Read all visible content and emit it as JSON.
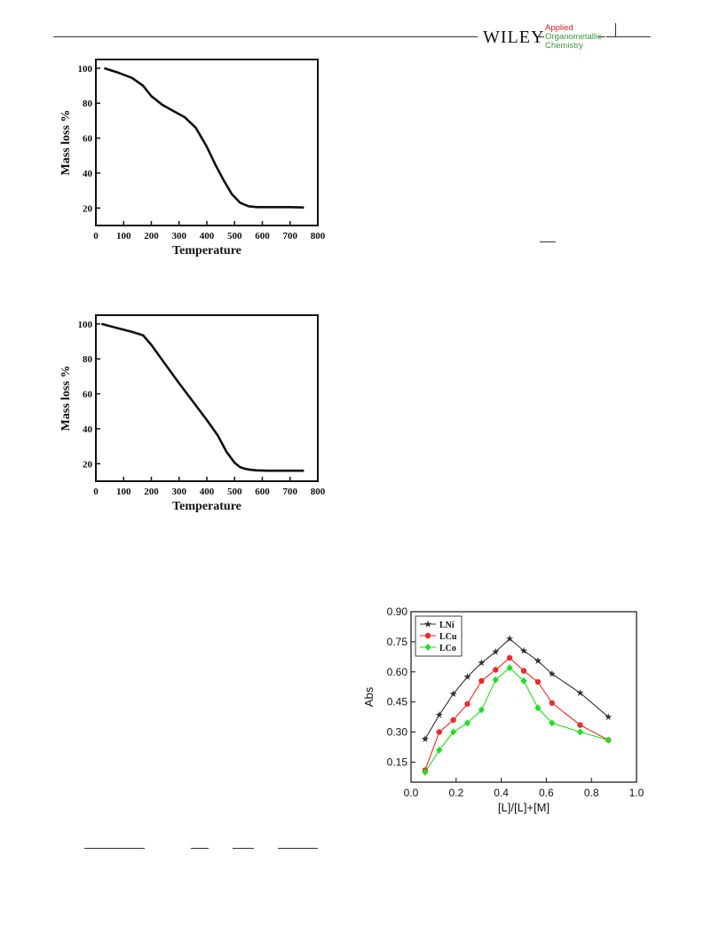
{
  "header": {
    "publisher": "WILEY",
    "journal_lines": [
      "Applied",
      "Organometallic",
      "Chemistry"
    ],
    "journal_accent": "#d02020",
    "journal_color": "#3a9a3a"
  },
  "chart_data": [
    {
      "type": "line",
      "title": "",
      "xlabel": "Temperature",
      "ylabel": "Mass loss %",
      "xlim": [
        0,
        800
      ],
      "ylim": [
        10,
        105
      ],
      "x_ticks": [
        0,
        100,
        200,
        300,
        400,
        500,
        600,
        700,
        800
      ],
      "y_ticks": [
        20,
        40,
        60,
        80,
        100
      ],
      "grid": false,
      "series": [
        {
          "x": [
            30,
            80,
            130,
            170,
            200,
            240,
            280,
            320,
            360,
            400,
            430,
            460,
            490,
            520,
            550,
            580,
            620,
            700,
            750
          ],
          "y": [
            100,
            97.5,
            94.5,
            90,
            84,
            79,
            75.5,
            72,
            66,
            55,
            45,
            36,
            28,
            23,
            21,
            20.5,
            20.5,
            20.5,
            20.3
          ]
        }
      ]
    },
    {
      "type": "line",
      "title": "",
      "xlabel": "Temperature",
      "ylabel": "Mass loss %",
      "xlim": [
        0,
        800
      ],
      "ylim": [
        10,
        105
      ],
      "x_ticks": [
        0,
        100,
        200,
        300,
        400,
        500,
        600,
        700,
        800
      ],
      "y_ticks": [
        20,
        40,
        60,
        80,
        100
      ],
      "grid": false,
      "series": [
        {
          "x": [
            20,
            80,
            130,
            170,
            200,
            250,
            300,
            350,
            400,
            440,
            470,
            500,
            520,
            540,
            560,
            580,
            620,
            700,
            750
          ],
          "y": [
            100,
            97.5,
            95.5,
            93.5,
            88,
            77,
            66,
            55.5,
            45,
            36,
            27,
            20.5,
            18,
            17,
            16.5,
            16.2,
            16,
            16,
            16
          ]
        }
      ]
    },
    {
      "type": "line",
      "title": "",
      "xlabel": "[L]/[L]+[M]",
      "ylabel": "Abs",
      "xlim": [
        0.0,
        1.0
      ],
      "ylim": [
        0.05,
        0.9
      ],
      "x_ticks": [
        "0.0",
        "0.2",
        "0.4",
        "0.6",
        "0.8",
        "1.0"
      ],
      "y_ticks": [
        "0.15",
        "0.30",
        "0.45",
        "0.60",
        "0.75",
        "0.90"
      ],
      "grid": false,
      "legend_position": "top-left",
      "x": [
        0.0625,
        0.125,
        0.1875,
        0.25,
        0.3125,
        0.375,
        0.4375,
        0.5,
        0.5625,
        0.625,
        0.75,
        0.875
      ],
      "series": [
        {
          "name": "LNi",
          "color": "#333333",
          "marker": "star",
          "values": [
            0.265,
            0.385,
            0.49,
            0.575,
            0.645,
            0.7,
            0.765,
            0.705,
            0.655,
            0.59,
            0.495,
            0.375
          ]
        },
        {
          "name": "LCu",
          "color": "#ee2a2a",
          "marker": "circle",
          "values": [
            0.11,
            0.3,
            0.36,
            0.44,
            0.555,
            0.61,
            0.67,
            0.605,
            0.55,
            0.445,
            0.335,
            0.26
          ]
        },
        {
          "name": "LCo",
          "color": "#22dd22",
          "marker": "diamond",
          "values": [
            0.1,
            0.21,
            0.3,
            0.345,
            0.41,
            0.56,
            0.62,
            0.555,
            0.42,
            0.345,
            0.3,
            0.26
          ]
        }
      ]
    }
  ]
}
